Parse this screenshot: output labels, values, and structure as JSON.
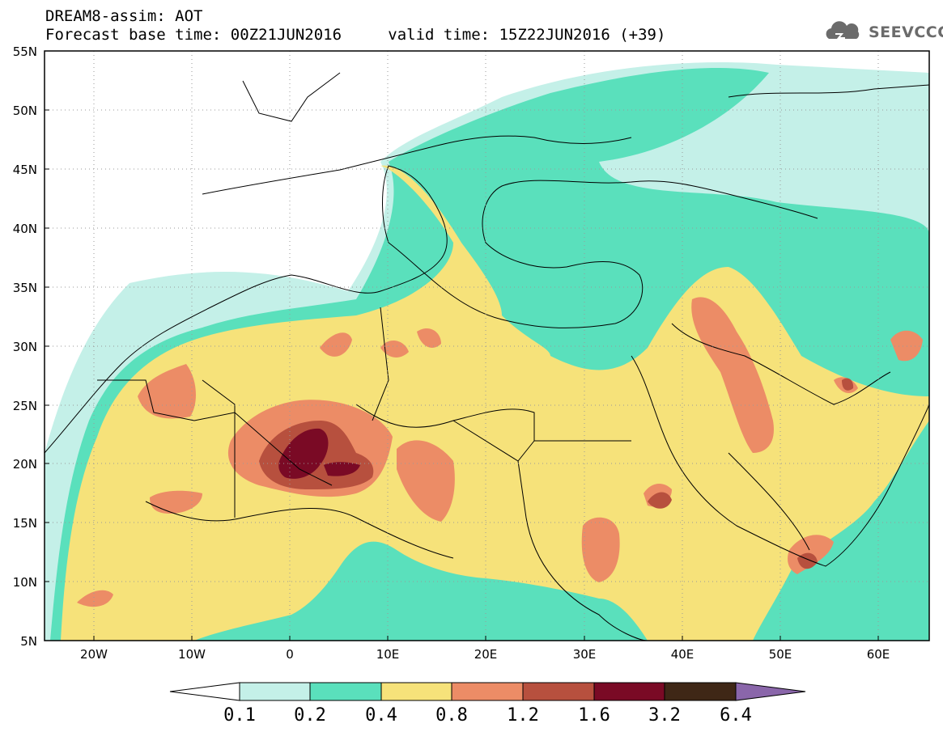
{
  "header": {
    "title": "DREAM8-assim: AOT",
    "forecast_base": "Forecast base time: 00Z21JUN2016",
    "valid_time": "valid time: 15Z22JUN2016 (+39)"
  },
  "logo": {
    "text": "SEEVCCC",
    "icon": "cloud-icon"
  },
  "map": {
    "variable": "AOT",
    "lon_range": [
      -25,
      65
    ],
    "lat_range": [
      5,
      55
    ],
    "lat_labels": [
      "55N",
      "50N",
      "45N",
      "40N",
      "35N",
      "30N",
      "25N",
      "20N",
      "15N",
      "10N",
      "5N"
    ],
    "lon_labels": [
      "20W",
      "10W",
      "0",
      "10E",
      "20E",
      "30E",
      "40E",
      "50E",
      "60E"
    ],
    "grid": "dotted"
  },
  "colorbar": {
    "levels": [
      "0.1",
      "0.2",
      "0.4",
      "0.8",
      "1.2",
      "1.6",
      "3.2",
      "6.4"
    ],
    "colors": [
      "#c4f0e8",
      "#5ae0bc",
      "#f6e27a",
      "#ec8c66",
      "#b7503e",
      "#7a0a25",
      "#3f2716",
      "#8a66aa"
    ],
    "under_color": "#ffffff",
    "over_color": "#8a66aa"
  }
}
